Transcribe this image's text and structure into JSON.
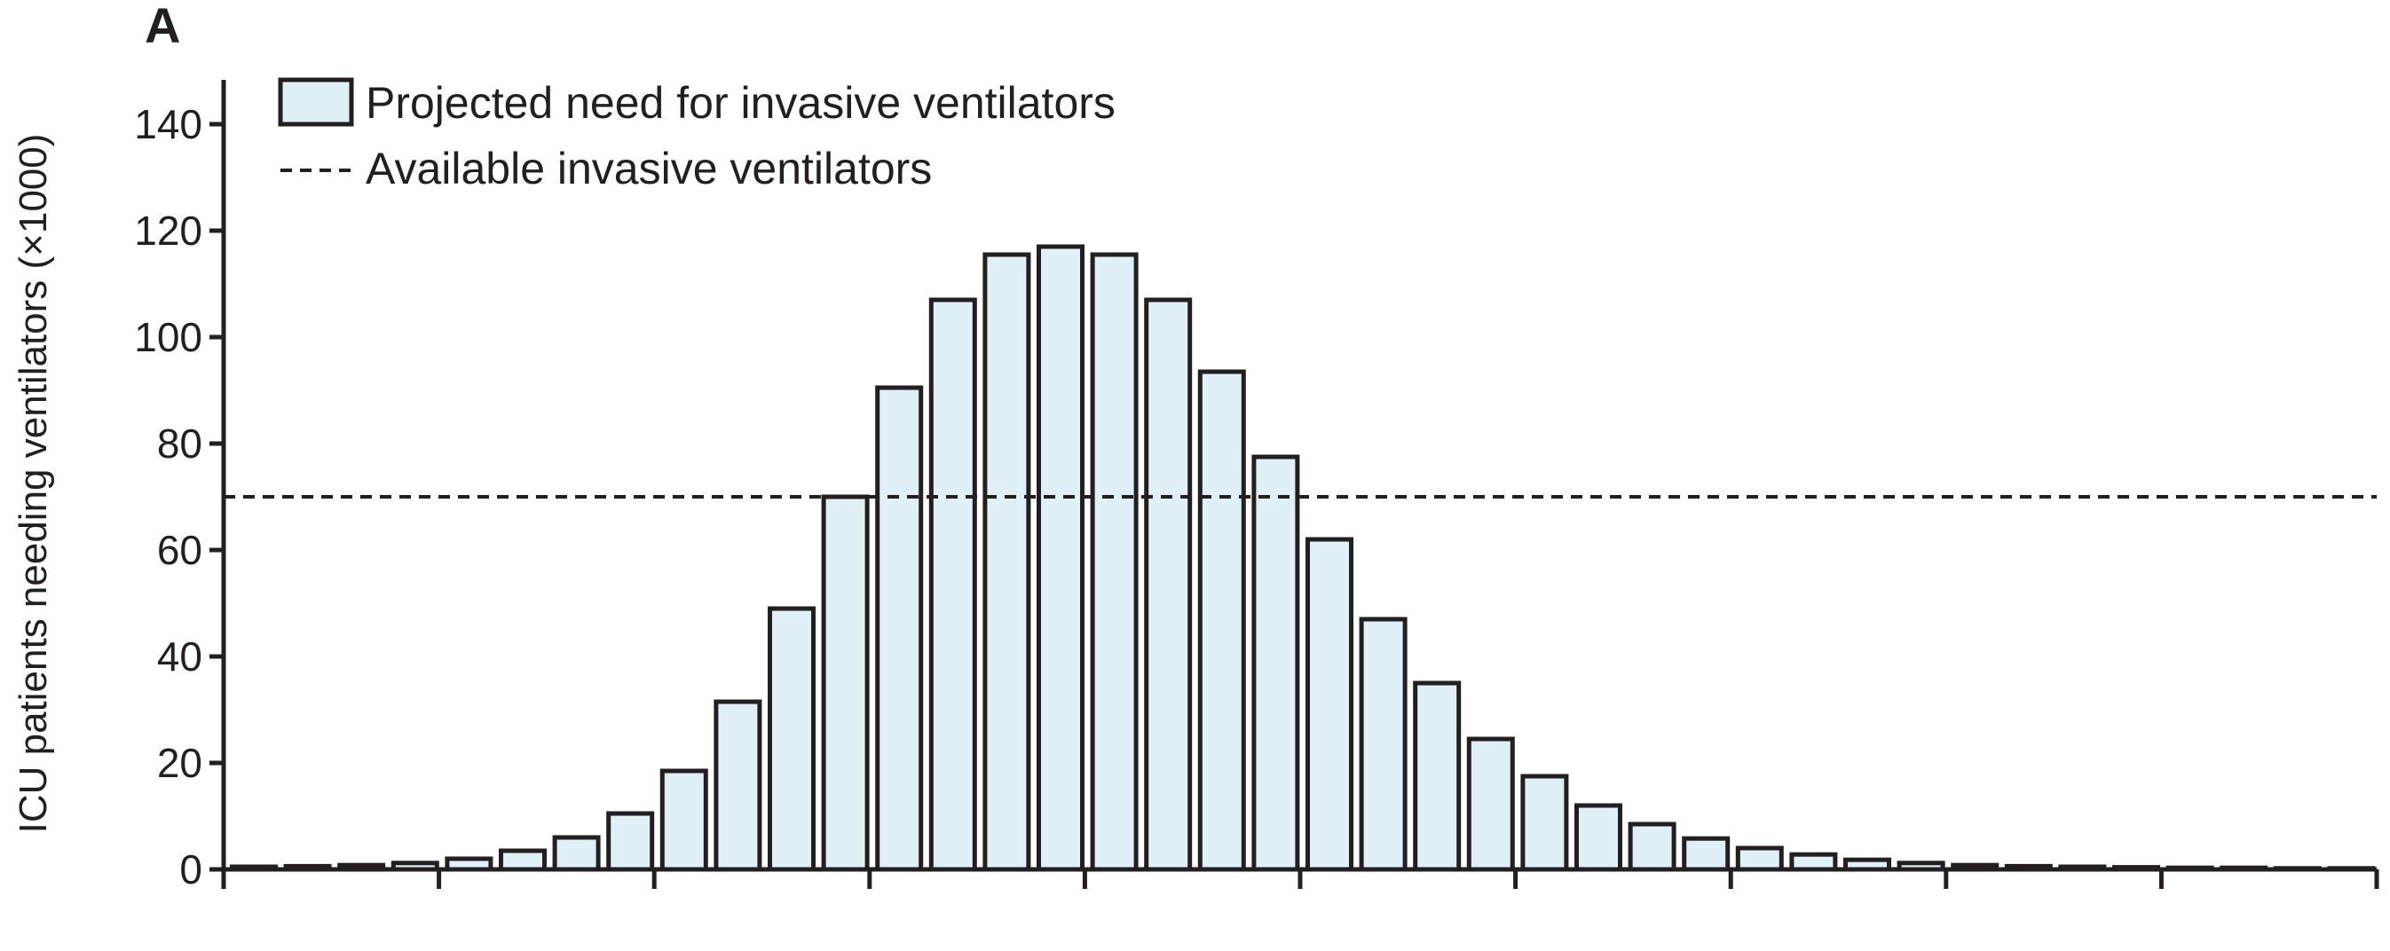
{
  "panel_label": "A",
  "legend": {
    "bar_label": "Projected need for invasive ventilators",
    "line_label": "Available invasive ventilators"
  },
  "colors": {
    "bar_fill": "#dff0f7",
    "stroke": "#231f20"
  },
  "chart_data": {
    "type": "bar",
    "title": "",
    "xlabel": "",
    "ylabel": "ICU patients needing ventilators (×1000)",
    "ylim": [
      0,
      145
    ],
    "y_ticks": [
      0,
      20,
      40,
      60,
      80,
      100,
      120,
      140
    ],
    "x_ticks_count": 11,
    "x_tick_labels": [],
    "grid": false,
    "legend_position": "top-left",
    "series": [
      {
        "name": "Projected need for invasive ventilators",
        "values": [
          0.5,
          0.6,
          0.8,
          1.2,
          2.0,
          3.5,
          6.0,
          10.5,
          18.5,
          31.5,
          49.0,
          70.0,
          90.5,
          107.0,
          115.5,
          117.0,
          115.5,
          107.0,
          93.5,
          77.5,
          62.0,
          47.0,
          35.0,
          24.5,
          17.5,
          12.0,
          8.5,
          5.8,
          4.0,
          2.8,
          1.8,
          1.2,
          0.8,
          0.6,
          0.5,
          0.4,
          0.3,
          0.3,
          0.2,
          0.2
        ]
      }
    ],
    "reference_lines": [
      {
        "name": "Available invasive ventilators",
        "y": 70,
        "style": "dashed"
      }
    ]
  }
}
